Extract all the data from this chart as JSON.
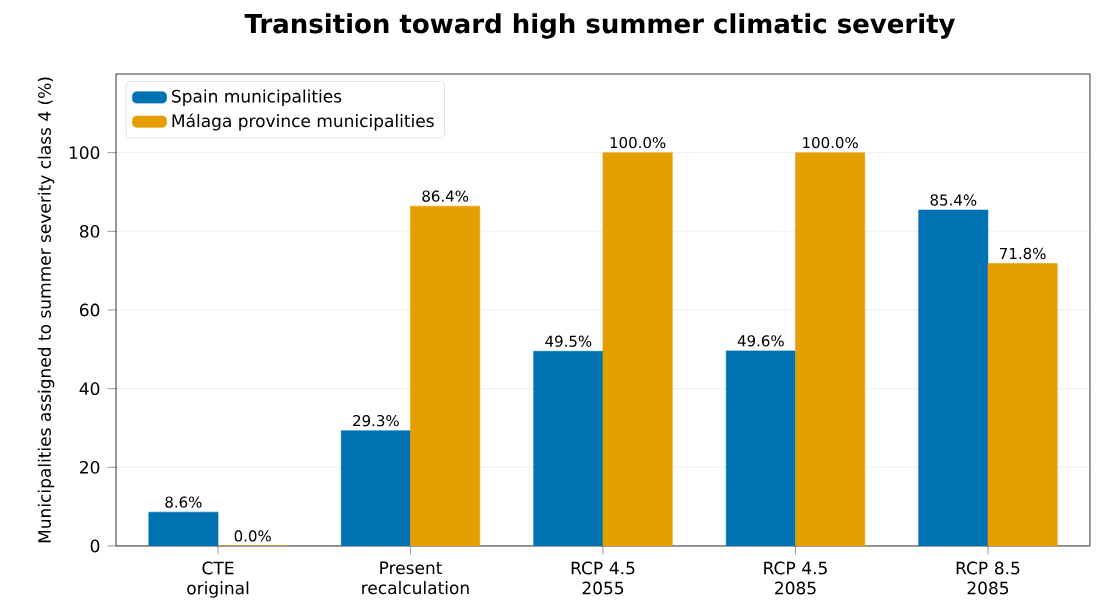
{
  "chart_data": {
    "type": "bar",
    "title": "Transition toward high summer climatic severity",
    "ylabel": "Municipalities assigned to summer severity class 4 (%)",
    "categories": [
      "CTE original",
      "Present recalculation",
      "RCP 4.5 2055",
      "RCP 4.5 2085",
      "RCP 8.5 2085"
    ],
    "series": [
      {
        "name": "Spain municipalities",
        "color": "#0072b2",
        "values": [
          8.6,
          29.3,
          49.5,
          49.6,
          85.4
        ],
        "value_labels": [
          "8.6%",
          "29.3%",
          "49.5%",
          "49.6%",
          "85.4%"
        ]
      },
      {
        "name": "Málaga province municipalities",
        "color": "#e69f00",
        "values": [
          0.0,
          86.4,
          100.0,
          100.0,
          71.8
        ],
        "value_labels": [
          "0.0%",
          "86.4%",
          "100.0%",
          "100.0%",
          "71.8%"
        ]
      }
    ],
    "ylim": [
      0,
      120
    ],
    "yticks": [
      0,
      20,
      40,
      60,
      80,
      100
    ],
    "grid": "y",
    "legend": "top left"
  }
}
